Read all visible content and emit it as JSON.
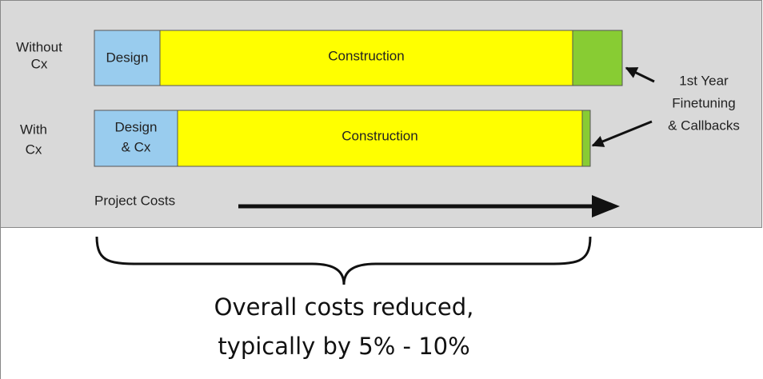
{
  "rows": [
    {
      "label": [
        "Without",
        "Cx"
      ],
      "segments": [
        {
          "label": [
            "Design"
          ]
        },
        {
          "label": [
            "Construction"
          ]
        },
        {
          "label": []
        }
      ]
    },
    {
      "label": [
        "With",
        "Cx"
      ],
      "segments": [
        {
          "label": [
            "Design",
            "& Cx"
          ]
        },
        {
          "label": [
            "Construction"
          ]
        },
        {
          "label": []
        }
      ]
    }
  ],
  "callout": [
    "1st Year",
    "Finetuning",
    "& Callbacks"
  ],
  "axis_label": "Project Costs",
  "summary": [
    "Overall costs reduced,",
    "typically by 5% - 10%"
  ]
}
